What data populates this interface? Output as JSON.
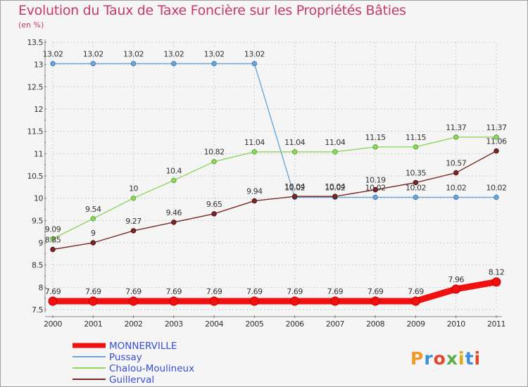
{
  "title": "Evolution du Taux de Taxe Foncière sur les Propriétés Bâties",
  "subtitle": "(en %)",
  "logo": {
    "text": "Proxiti",
    "colors": [
      "#f19a2a",
      "#3a8fd6",
      "#e4452b",
      "#55b04a",
      "#e2a80d",
      "#3a8fd6",
      "#e4452b"
    ]
  },
  "chart_data": {
    "type": "line",
    "title": "Evolution du Taux de Taxe Foncière sur les Propriétés Bâties",
    "ylabel": "(en %)",
    "xlabel": "",
    "x": [
      "2000",
      "2001",
      "2002",
      "2003",
      "2004",
      "2005",
      "2006",
      "2007",
      "2008",
      "2009",
      "2010",
      "2011"
    ],
    "ylim": [
      7.5,
      13.5
    ],
    "yticks": [
      "7.5",
      "8",
      "8.5",
      "9",
      "9.5",
      "10",
      "10.5",
      "11",
      "11.5",
      "12",
      "12.5",
      "13",
      "13.5"
    ],
    "legend_position": "bottom-left",
    "series": [
      {
        "name": "MONNERVILLE",
        "color": "#f01010",
        "text_color": "#3a4fd0",
        "values": [
          7.69,
          7.69,
          7.69,
          7.69,
          7.69,
          7.69,
          7.69,
          7.69,
          7.69,
          7.69,
          7.96,
          8.12
        ],
        "labels": [
          "7.69",
          "7.69",
          "7.69",
          "7.69",
          "7.69",
          "7.69",
          "7.69",
          "7.69",
          "7.69",
          "7.69",
          "7.96",
          "8.12"
        ]
      },
      {
        "name": "Pussay",
        "color": "#6fa6d6",
        "text_color": "#3a4fd0",
        "values": [
          13.02,
          13.02,
          13.02,
          13.02,
          13.02,
          13.02,
          10.02,
          10.02,
          10.02,
          10.02,
          10.02,
          10.02
        ],
        "labels": [
          "13.02",
          "13.02",
          "13.02",
          "13.02",
          "13.02",
          "13.02",
          "10.02",
          "10.02",
          "10.02",
          "10.02",
          "10.02",
          "10.02"
        ]
      },
      {
        "name": "Chalou-Moulineux",
        "color": "#90d660",
        "text_color": "#3a4fd0",
        "values": [
          9.09,
          9.54,
          10,
          10.4,
          10.82,
          11.04,
          11.04,
          11.04,
          11.15,
          11.15,
          11.37,
          11.37
        ],
        "labels": [
          "9.09",
          "9.54",
          "10",
          "10.4",
          "10.82",
          "11.04",
          "11.04",
          "11.04",
          "11.15",
          "11.15",
          "11.37",
          "11.37"
        ]
      },
      {
        "name": "Guillerval",
        "color": "#7a2828",
        "text_color": "#3a4fd0",
        "values": [
          8.85,
          9,
          9.27,
          9.46,
          9.65,
          9.94,
          10.04,
          10.04,
          10.19,
          10.35,
          10.57,
          11.06
        ],
        "labels": [
          "8.85",
          "9",
          "9.27",
          "9.46",
          "9.65",
          "9.94",
          "10.04",
          "10.04",
          "10.19",
          "10.35",
          "10.57",
          "11.06"
        ]
      }
    ]
  }
}
